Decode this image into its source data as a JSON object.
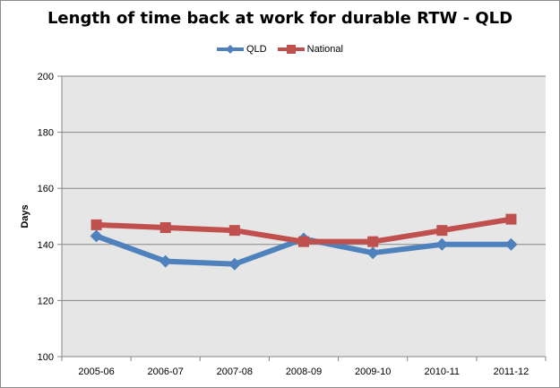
{
  "chart_data": {
    "type": "line",
    "title": "Length of time back at work for durable RTW - QLD",
    "xlabel": "",
    "ylabel": "Days",
    "categories": [
      "2005-06",
      "2006-07",
      "2007-08",
      "2008-09",
      "2009-10",
      "2010-11",
      "2011-12"
    ],
    "ylim": [
      100,
      200
    ],
    "yticks": [
      100,
      120,
      140,
      160,
      180,
      200
    ],
    "grid": true,
    "legend_position": "top",
    "series": [
      {
        "name": "QLD",
        "color": "#4f81bd",
        "marker": "diamond",
        "values": [
          143,
          134,
          133,
          142,
          137,
          140,
          140
        ]
      },
      {
        "name": "National",
        "color": "#c0504d",
        "marker": "square",
        "values": [
          147,
          146,
          145,
          141,
          141,
          145,
          149
        ]
      }
    ],
    "plot_background": "#e6e6e6",
    "gridline_color": "#868686"
  }
}
